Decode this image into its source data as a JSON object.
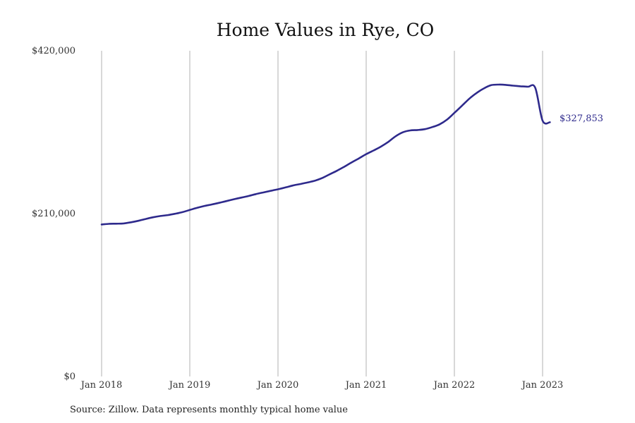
{
  "chart_data": {
    "type": "line",
    "title": "Home Values in Rye, CO",
    "xlabel": "",
    "ylabel": "",
    "y_ticks": [
      {
        "value": 0,
        "label": "$0"
      },
      {
        "value": 210000,
        "label": "$210,000"
      },
      {
        "value": 420000,
        "label": "$420,000"
      }
    ],
    "x_ticks": [
      {
        "date": "2018-01",
        "label": "Jan 2018"
      },
      {
        "date": "2019-01",
        "label": "Jan 2019"
      },
      {
        "date": "2020-01",
        "label": "Jan 2020"
      },
      {
        "date": "2021-01",
        "label": "Jan 2021"
      },
      {
        "date": "2022-01",
        "label": "Jan 2022"
      },
      {
        "date": "2023-01",
        "label": "Jan 2023"
      }
    ],
    "ylim": [
      0,
      420000
    ],
    "xlim": [
      "2018-01",
      "2023-02"
    ],
    "grid": "vertical",
    "legend": "none",
    "line_color": "#2e2a8c",
    "series": [
      {
        "x": [
          "2018-01",
          "2018-02",
          "2018-03",
          "2018-04",
          "2018-05",
          "2018-06",
          "2018-07",
          "2018-08",
          "2018-09",
          "2018-10",
          "2018-11",
          "2018-12",
          "2019-01",
          "2019-02",
          "2019-03",
          "2019-04",
          "2019-05",
          "2019-06",
          "2019-07",
          "2019-08",
          "2019-09",
          "2019-10",
          "2019-11",
          "2019-12",
          "2020-01",
          "2020-02",
          "2020-03",
          "2020-04",
          "2020-05",
          "2020-06",
          "2020-07",
          "2020-08",
          "2020-09",
          "2020-10",
          "2020-11",
          "2020-12",
          "2021-01",
          "2021-02",
          "2021-03",
          "2021-04",
          "2021-05",
          "2021-06",
          "2021-07",
          "2021-08",
          "2021-09",
          "2021-10",
          "2021-11",
          "2021-12",
          "2022-01",
          "2022-02",
          "2022-03",
          "2022-04",
          "2022-05",
          "2022-06",
          "2022-07",
          "2022-08",
          "2022-09",
          "2022-10",
          "2022-11",
          "2022-12",
          "2023-01",
          "2023-02"
        ],
        "values": [
          196000,
          196800,
          197000,
          197400,
          198800,
          200700,
          203100,
          205300,
          206900,
          208100,
          209800,
          211900,
          214700,
          217500,
          219900,
          221800,
          223900,
          226200,
          228500,
          230600,
          232700,
          235200,
          237300,
          239400,
          241400,
          243700,
          246200,
          248100,
          250100,
          252400,
          255800,
          260500,
          265200,
          270400,
          275900,
          281200,
          286700,
          291400,
          296400,
          302500,
          309700,
          314900,
          317300,
          317800,
          318900,
          321600,
          325200,
          331300,
          339900,
          348800,
          357900,
          365400,
          371400,
          375600,
          376400,
          376000,
          375000,
          374200,
          373600,
          372300,
          329900,
          327853
        ]
      }
    ],
    "end_value_label": "$327,853",
    "source": "Source: Zillow. Data represents monthly typical home value"
  }
}
